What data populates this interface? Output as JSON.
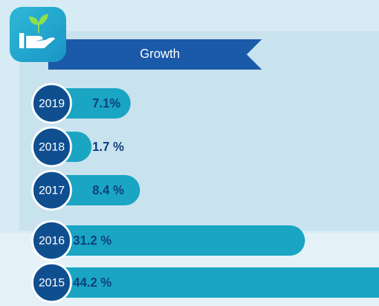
{
  "chart_data": {
    "type": "bar",
    "title": "Growth",
    "categories": [
      "2019",
      "2018",
      "2017",
      "2016",
      "2015"
    ],
    "values": [
      7.1,
      1.7,
      8.4,
      31.2,
      44.2
    ],
    "value_labels": [
      "7.1%",
      "1.7 %",
      "8.4 %",
      "31.2 %",
      "44.2 %"
    ],
    "color": "#1aa5c3"
  }
}
